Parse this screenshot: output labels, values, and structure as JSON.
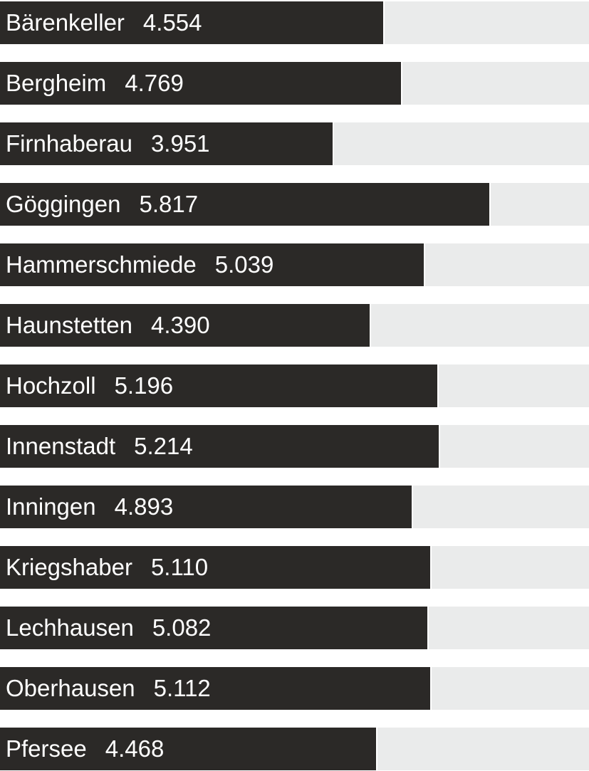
{
  "chart_data": {
    "type": "bar",
    "orientation": "horizontal",
    "title": "",
    "xlabel": "",
    "ylabel": "",
    "categories": [
      "Bärenkeller",
      "Bergheim",
      "Firnhaberau",
      "Göggingen",
      "Hammerschmiede",
      "Haunstetten",
      "Hochzoll",
      "Innenstadt",
      "Inningen",
      "Kriegshaber",
      "Lechhausen",
      "Oberhausen",
      "Pfersee"
    ],
    "values": [
      4554,
      4769,
      3951,
      5817,
      5039,
      4390,
      5196,
      5214,
      4893,
      5110,
      5082,
      5112,
      4468
    ],
    "value_labels": [
      "4.554",
      "4.769",
      "3.951",
      "5.817",
      "5.039",
      "4.390",
      "5.196",
      "5.214",
      "4.893",
      "5.110",
      "5.082",
      "5.112",
      "4.468"
    ],
    "xlim": [
      0,
      7000
    ],
    "grid": false,
    "legend": false,
    "colors": {
      "bar": "#2B2927",
      "track": "#EAEBEB",
      "text": "#FFFFFF",
      "background": "#FFFFFF"
    }
  }
}
